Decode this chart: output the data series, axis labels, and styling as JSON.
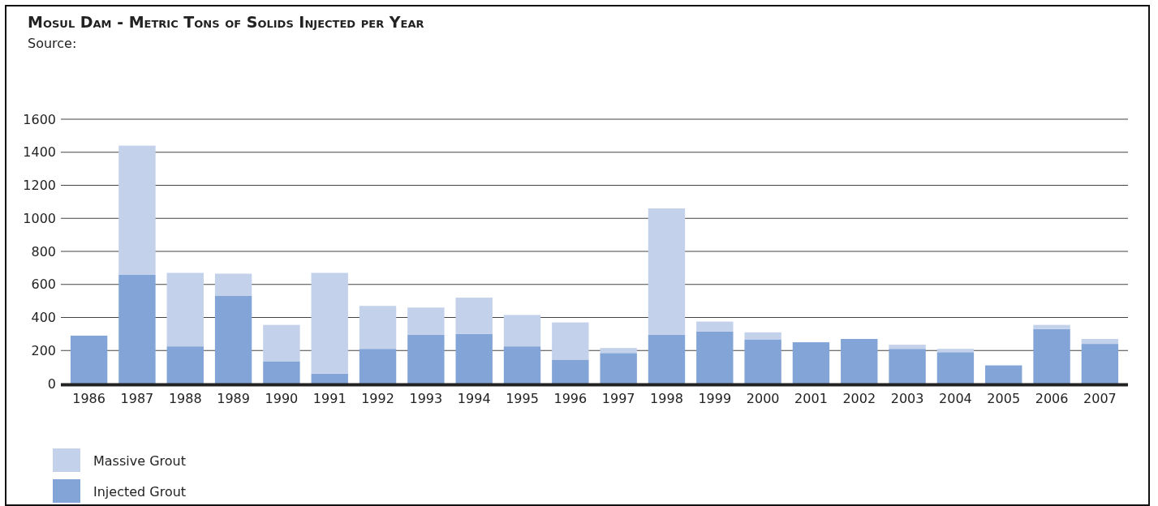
{
  "chart_data": {
    "type": "bar",
    "title": "Mosul Dam - Metric Tons of Solids Injected per Year",
    "annotations": [
      "Source:"
    ],
    "categories": [
      "1986",
      "1987",
      "1988",
      "1989",
      "1990",
      "1991",
      "1992",
      "1993",
      "1994",
      "1995",
      "1996",
      "1997",
      "1998",
      "1999",
      "2000",
      "2001",
      "2002",
      "2003",
      "2004",
      "2005",
      "2006",
      "2007"
    ],
    "stacked": true,
    "series": [
      {
        "name": "Injected Grout",
        "color": "#82a4d6",
        "values": [
          290,
          660,
          225,
          530,
          135,
          60,
          210,
          295,
          300,
          225,
          145,
          185,
          295,
          315,
          265,
          250,
          270,
          210,
          190,
          110,
          330,
          240
        ]
      },
      {
        "name": "Massive Grout",
        "color": "#c3d1eb",
        "values": [
          0,
          780,
          445,
          135,
          220,
          610,
          260,
          165,
          220,
          190,
          225,
          30,
          765,
          60,
          45,
          0,
          0,
          25,
          20,
          0,
          25,
          30
        ]
      }
    ],
    "ylim": [
      0,
      1600
    ],
    "yticks": [
      0,
      200,
      400,
      600,
      800,
      1000,
      1200,
      1400,
      1600
    ],
    "grid": "y",
    "legend": "bottom left"
  }
}
